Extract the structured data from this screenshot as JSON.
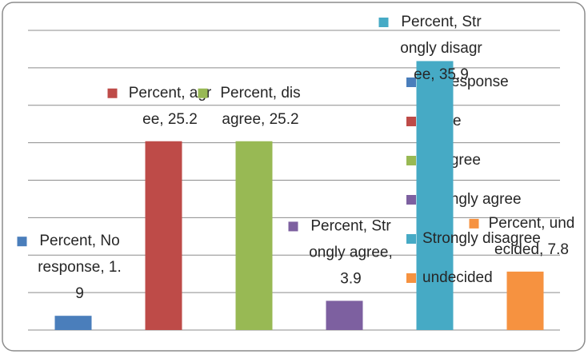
{
  "chart_data": {
    "type": "bar",
    "series_name": "Percent",
    "categories": [
      "No response",
      "agree",
      "disagree",
      "Strongly agree",
      "Strongly disagree",
      "undecided"
    ],
    "values": [
      1.9,
      25.2,
      25.2,
      3.9,
      35.9,
      7.8
    ],
    "value_labels": [
      "Percent, No response, 1.9",
      "Percent, agree, 25.2",
      "Percent, disagree, 25.2",
      "Percent, Strongly agree, 3.9",
      "Percent, Strongly disagree, 35.9",
      "Percent, undecided, 7.8"
    ],
    "colors": [
      "#4a7ebb",
      "#be4b48",
      "#98b954",
      "#7d60a0",
      "#46aac5",
      "#f69240"
    ],
    "ylim": [
      0,
      40
    ],
    "yticks": [
      0,
      5,
      10,
      15,
      20,
      25,
      30,
      35,
      40
    ],
    "grid": true,
    "legend": "right"
  }
}
